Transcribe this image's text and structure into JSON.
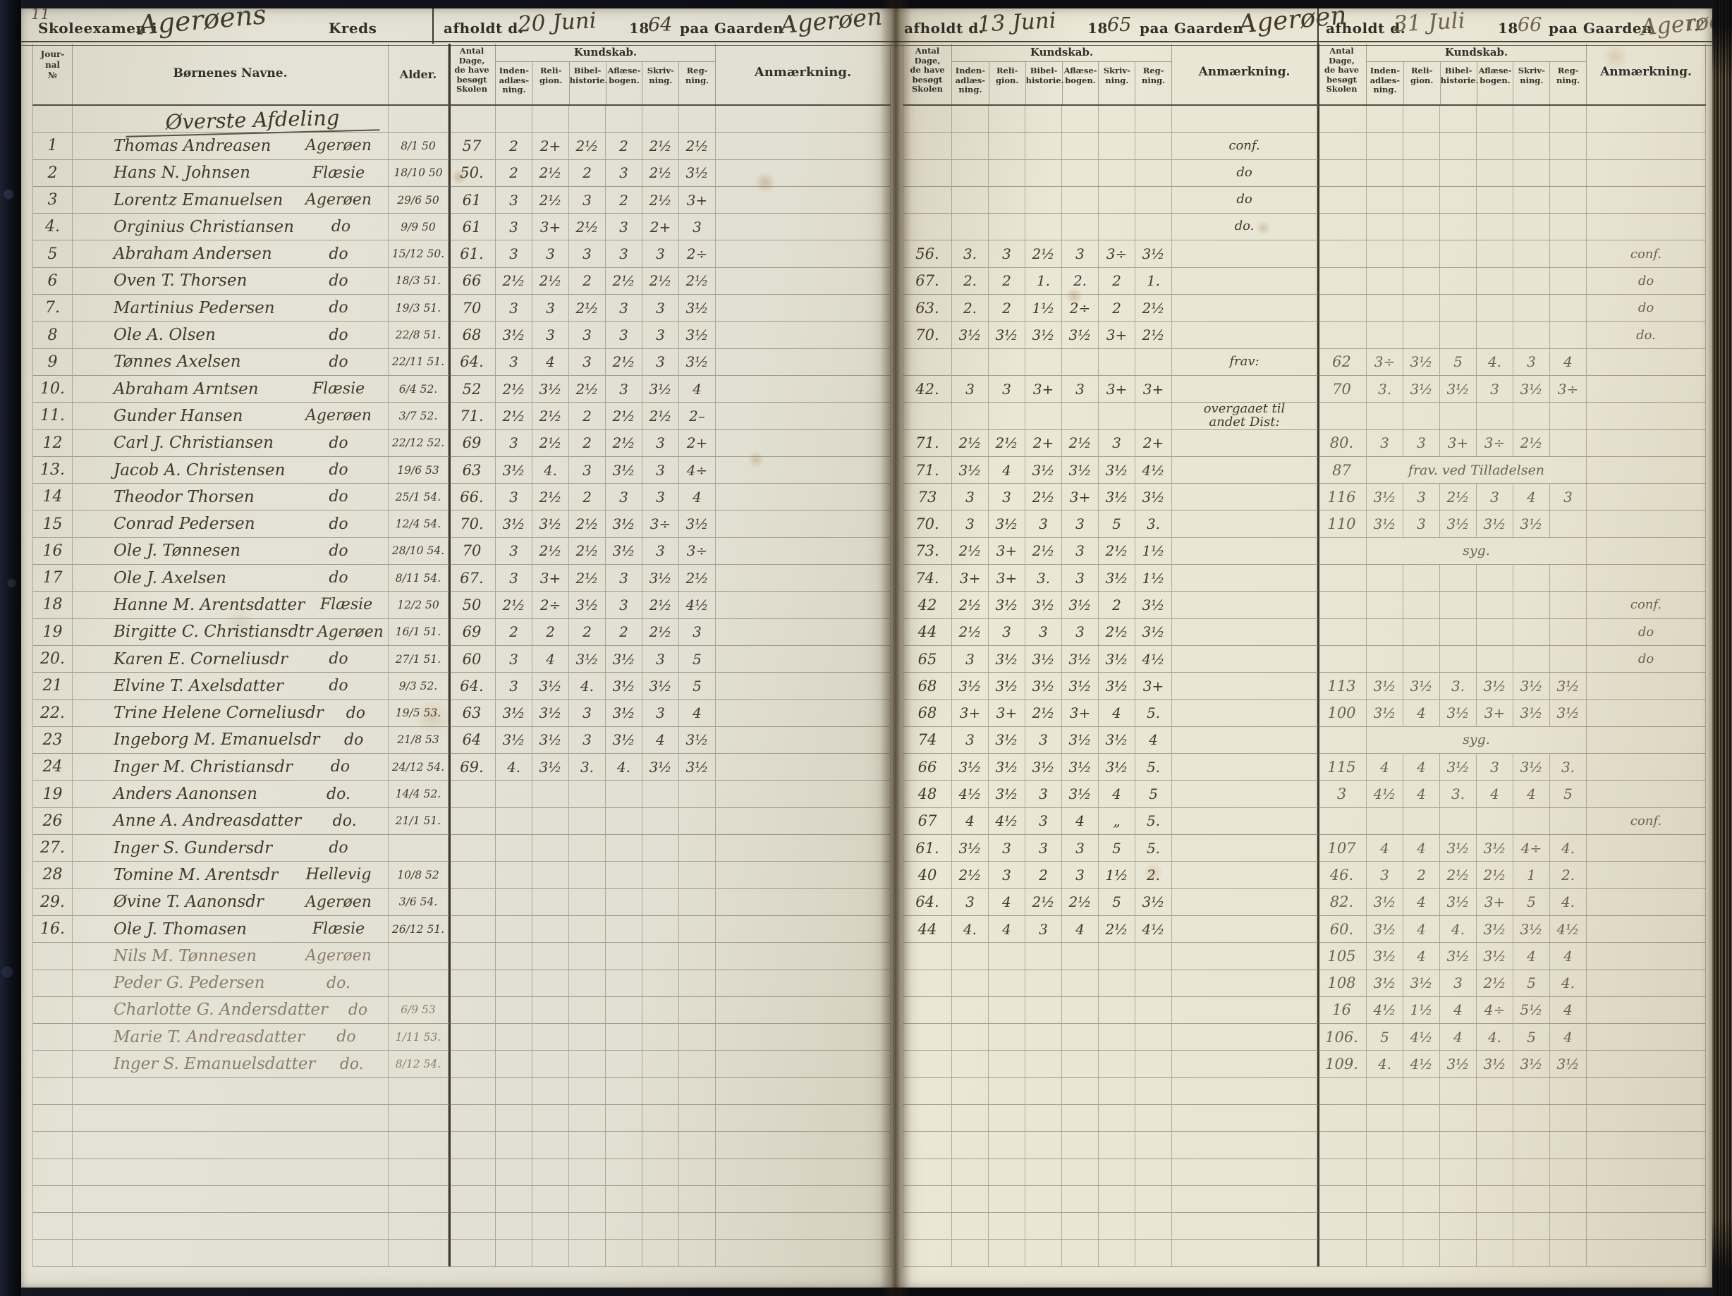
{
  "colors": {
    "paper": "#e8e4d5",
    "ink": "#43392b",
    "pencil": "#6e6250",
    "cover": "#0d0f16"
  },
  "document": {
    "type_label": "Skoleexamen i",
    "circuit_name": "Agerøens",
    "kreds_label": "Kreds",
    "held_label": "afholdt d.",
    "century": "18",
    "farm_label": "paa Gaarden",
    "page_number_left": "11",
    "page_number_right": "12",
    "section_title": "Øverste Afdeling",
    "exams": [
      {
        "date": "20 Juni",
        "year2": "64",
        "farm": "Agerøen"
      },
      {
        "date": "13 Juni",
        "year2": "65",
        "farm": "Agerøen"
      },
      {
        "date": "31 Juli",
        "year2": "66",
        "farm": "Agerøen"
      }
    ]
  },
  "columns": {
    "journal": "Jour-\nnal\n№",
    "names": "Børnenes Navne.",
    "age": "Alder.",
    "days": "Antal\nDage,\nde have\nbesøgt\nSkolen",
    "knowledge": "Kundskab.",
    "subjects": [
      "Inden-\nadlæs-\nning.",
      "Reli-\ngion.",
      "Bibel-\nhistorie.",
      "Aflæse-\nbogen.",
      "Skriv-\nning.",
      "Reg-\nning."
    ],
    "remark": "Anmærkning."
  },
  "rows": [
    {
      "no": "1",
      "name": "Thomas Andreasen",
      "res": "Agerøen",
      "born": "8/1 50",
      "d64": "57",
      "g64": [
        "2",
        "2+",
        "2½",
        "2",
        "2½",
        "2½"
      ],
      "a65": "conf."
    },
    {
      "no": "2",
      "name": "Hans N. Johnsen",
      "res": "Flæsie",
      "born": "18/10 50",
      "d64": "50.",
      "g64": [
        "2",
        "2½",
        "2",
        "3",
        "2½",
        "3½"
      ],
      "a65": "do"
    },
    {
      "no": "3",
      "name": "Lorentz Emanuelsen",
      "res": "Agerøen",
      "born": "29/6 50",
      "d64": "61",
      "g64": [
        "3",
        "2½",
        "3",
        "2",
        "2½",
        "3+"
      ],
      "a65": "do"
    },
    {
      "no": "4.",
      "name": "Orginius Christiansen",
      "res": "do",
      "born": "9/9 50",
      "d64": "61",
      "g64": [
        "3",
        "3+",
        "2½",
        "3",
        "2+",
        "3"
      ],
      "a65": "do."
    },
    {
      "no": "5",
      "name": "Abraham Andersen",
      "res": "do",
      "born": "15/12 50.",
      "d64": "61.",
      "g64": [
        "3",
        "3",
        "3",
        "3",
        "3",
        "2÷"
      ],
      "d65": "56.",
      "g65": [
        "3.",
        "3",
        "2½",
        "3",
        "3÷",
        "3½"
      ],
      "a66": "conf."
    },
    {
      "no": "6",
      "name": "Oven T. Thorsen",
      "res": "do",
      "born": "18/3 51.",
      "d64": "66",
      "g64": [
        "2½",
        "2½",
        "2",
        "2½",
        "2½",
        "2½"
      ],
      "d65": "67.",
      "g65": [
        "2.",
        "2",
        "1.",
        "2.",
        "2",
        "1."
      ],
      "a66": "do"
    },
    {
      "no": "7.",
      "name": "Martinius Pedersen",
      "res": "do",
      "born": "19/3 51.",
      "d64": "70",
      "g64": [
        "3",
        "3",
        "2½",
        "3",
        "3",
        "3½"
      ],
      "d65": "63.",
      "g65": [
        "2.",
        "2",
        "1½",
        "2÷",
        "2",
        "2½"
      ],
      "a66": "do"
    },
    {
      "no": "8",
      "name": "Ole A. Olsen",
      "res": "do",
      "born": "22/8 51.",
      "d64": "68",
      "g64": [
        "3½",
        "3",
        "3",
        "3",
        "3",
        "3½"
      ],
      "d65": "70.",
      "g65": [
        "3½",
        "3½",
        "3½",
        "3½",
        "3+",
        "2½"
      ],
      "a66": "do."
    },
    {
      "no": "9",
      "name": "Tønnes Axelsen",
      "res": "do",
      "born": "22/11 51.",
      "d64": "64.",
      "g64": [
        "3",
        "4",
        "3",
        "2½",
        "3",
        "3½"
      ],
      "a65": "frav:",
      "d66": "62",
      "g66": [
        "3÷",
        "3½",
        "5",
        "4.",
        "3",
        "4"
      ]
    },
    {
      "no": "10.",
      "name": "Abraham Arntsen",
      "res": "Flæsie",
      "born": "6/4 52.",
      "d64": "52",
      "g64": [
        "2½",
        "3½",
        "2½",
        "3",
        "3½",
        "4"
      ],
      "d65": "42.",
      "g65": [
        "3",
        "3",
        "3+",
        "3",
        "3+",
        "3+"
      ],
      "d66": "70",
      "g66": [
        "3.",
        "3½",
        "3½",
        "3",
        "3½",
        "3÷"
      ]
    },
    {
      "no": "11.",
      "name": "Gunder Hansen",
      "res": "Agerøen",
      "born": "3/7 52.",
      "d64": "71.",
      "g64": [
        "2½",
        "2½",
        "2",
        "2½",
        "2½",
        "2–"
      ],
      "a65": "overgaaet til\nandet Dist:"
    },
    {
      "no": "12",
      "name": "Carl J. Christiansen",
      "res": "do",
      "born": "22/12 52.",
      "d64": "69",
      "g64": [
        "3",
        "2½",
        "2",
        "2½",
        "3",
        "2+"
      ],
      "d65": "71.",
      "g65": [
        "2½",
        "2½",
        "2+",
        "2½",
        "3",
        "2+"
      ],
      "d66": "80.",
      "g66": [
        "3",
        "3",
        "3+",
        "3÷",
        "2½",
        ""
      ]
    },
    {
      "no": "13.",
      "name": "Jacob A. Christensen",
      "res": "do",
      "born": "19/6 53",
      "d64": "63",
      "g64": [
        "3½",
        "4.",
        "3",
        "3½",
        "3",
        "4÷"
      ],
      "d65": "71.",
      "g65": [
        "3½",
        "4",
        "3½",
        "3½",
        "3½",
        "4½"
      ],
      "d66": "87",
      "note66": "frav. ved Tilladelsen"
    },
    {
      "no": "14",
      "name": "Theodor Thorsen",
      "res": "do",
      "born": "25/1 54.",
      "d64": "66.",
      "g64": [
        "3",
        "2½",
        "2",
        "3",
        "3",
        "4"
      ],
      "d65": "73",
      "g65": [
        "3",
        "3",
        "2½",
        "3+",
        "3½",
        "3½"
      ],
      "d66": "116",
      "g66": [
        "3½",
        "3",
        "2½",
        "3",
        "4",
        "3"
      ]
    },
    {
      "no": "15",
      "name": "Conrad Pedersen",
      "res": "do",
      "born": "12/4 54.",
      "d64": "70.",
      "g64": [
        "3½",
        "3½",
        "2½",
        "3½",
        "3÷",
        "3½"
      ],
      "d65": "70.",
      "g65": [
        "3",
        "3½",
        "3",
        "3",
        "5",
        "3."
      ],
      "d66": "110",
      "g66": [
        "3½",
        "3",
        "3½",
        "3½",
        "3½",
        ""
      ]
    },
    {
      "no": "16",
      "name": "Ole J. Tønnesen",
      "res": "do",
      "born": "28/10 54.",
      "d64": "70",
      "g64": [
        "3",
        "2½",
        "2½",
        "3½",
        "3",
        "3÷"
      ],
      "d65": "73.",
      "g65": [
        "2½",
        "3+",
        "2½",
        "3",
        "2½",
        "1½"
      ],
      "note66": "syg."
    },
    {
      "no": "17",
      "name": "Ole J. Axelsen",
      "res": "do",
      "born": "8/11 54.",
      "d64": "67.",
      "g64": [
        "3",
        "3+",
        "2½",
        "3",
        "3½",
        "2½"
      ],
      "d65": "74.",
      "g65": [
        "3+",
        "3+",
        "3.",
        "3",
        "3½",
        "1½"
      ]
    },
    {
      "no": "18",
      "name": "Hanne M. Arentsdatter",
      "res": "Flæsie",
      "born": "12/2 50",
      "d64": "50",
      "g64": [
        "2½",
        "2÷",
        "3½",
        "3",
        "2½",
        "4½"
      ],
      "d65": "42",
      "g65": [
        "2½",
        "3½",
        "3½",
        "3½",
        "2",
        "3½"
      ],
      "a66": "conf."
    },
    {
      "no": "19",
      "name": "Birgitte C. Christiansdtr",
      "res": "Agerøen",
      "born": "16/1 51.",
      "d64": "69",
      "g64": [
        "2",
        "2",
        "2",
        "2",
        "2½",
        "3"
      ],
      "d65": "44",
      "g65": [
        "2½",
        "3",
        "3",
        "3",
        "2½",
        "3½"
      ],
      "a66": "do"
    },
    {
      "no": "20.",
      "name": "Karen E. Corneliusdr",
      "res": "do",
      "born": "27/1 51.",
      "d64": "60",
      "g64": [
        "3",
        "4",
        "3½",
        "3½",
        "3",
        "5"
      ],
      "d65": "65",
      "g65": [
        "3",
        "3½",
        "3½",
        "3½",
        "3½",
        "4½"
      ],
      "a66": "do"
    },
    {
      "no": "21",
      "name": "Elvine T. Axelsdatter",
      "res": "do",
      "born": "9/3 52.",
      "d64": "64.",
      "g64": [
        "3",
        "3½",
        "4.",
        "3½",
        "3½",
        "5"
      ],
      "d65": "68",
      "g65": [
        "3½",
        "3½",
        "3½",
        "3½",
        "3½",
        "3+"
      ],
      "d66": "113",
      "g66": [
        "3½",
        "3½",
        "3.",
        "3½",
        "3½",
        "3½"
      ]
    },
    {
      "no": "22.",
      "name": "Trine Helene Corneliusdr",
      "res": "do",
      "born": "19/5 53.",
      "d64": "63",
      "g64": [
        "3½",
        "3½",
        "3",
        "3½",
        "3",
        "4"
      ],
      "d65": "68",
      "g65": [
        "3+",
        "3+",
        "2½",
        "3+",
        "4",
        "5."
      ],
      "d66": "100",
      "g66": [
        "3½",
        "4",
        "3½",
        "3+",
        "3½",
        "3½"
      ]
    },
    {
      "no": "23",
      "name": "Ingeborg M. Emanuelsdr",
      "res": "do",
      "born": "21/8 53",
      "d64": "64",
      "g64": [
        "3½",
        "3½",
        "3",
        "3½",
        "4",
        "3½"
      ],
      "d65": "74",
      "g65": [
        "3",
        "3½",
        "3",
        "3½",
        "3½",
        "4"
      ],
      "note66": "syg."
    },
    {
      "no": "24",
      "name": "Inger M. Christiansdr",
      "res": "do",
      "born": "24/12 54.",
      "d64": "69.",
      "g64": [
        "4.",
        "3½",
        "3.",
        "4.",
        "3½",
        "3½"
      ],
      "d65": "66",
      "g65": [
        "3½",
        "3½",
        "3½",
        "3½",
        "3½",
        "5."
      ],
      "d66": "115",
      "g66": [
        "4",
        "4",
        "3½",
        "3",
        "3½",
        "3."
      ]
    },
    {
      "no": "19",
      "name": "Anders Aanonsen",
      "res": "do.",
      "born": "14/4 52.",
      "d65": "48",
      "g65": [
        "4½",
        "3½",
        "3",
        "3½",
        "4",
        "5"
      ],
      "d66": "3",
      "g66": [
        "4½",
        "4",
        "3.",
        "4",
        "4",
        "5"
      ]
    },
    {
      "no": "26",
      "name": "Anne A. Andreasdatter",
      "res": "do.",
      "born": "21/1 51.",
      "d65": "67",
      "g65": [
        "4",
        "4½",
        "3",
        "4",
        "„",
        "5."
      ],
      "a66": "conf."
    },
    {
      "no": "27.",
      "name": "Inger S. Gundersdr",
      "res": "do",
      "d65": "61.",
      "g65": [
        "3½",
        "3",
        "3",
        "3",
        "5",
        "5."
      ],
      "d66": "107",
      "g66": [
        "4",
        "4",
        "3½",
        "3½",
        "4÷",
        "4."
      ]
    },
    {
      "no": "28",
      "name": "Tomine M. Arentsdr",
      "res": "Hellevig",
      "born": "10/8 52",
      "d65": "40",
      "g65": [
        "2½",
        "3",
        "2",
        "3",
        "1½",
        "2."
      ],
      "d66": "46.",
      "g66": [
        "3",
        "2",
        "2½",
        "2½",
        "1",
        "2."
      ]
    },
    {
      "no": "29.",
      "name": "Øvine T. Aanonsdr",
      "res": "Agerøen",
      "born": "3/6 54.",
      "d65": "64.",
      "g65": [
        "3",
        "4",
        "2½",
        "2½",
        "5",
        "3½"
      ],
      "d66": "82.",
      "g66": [
        "3½",
        "4",
        "3½",
        "3+",
        "5",
        "4."
      ]
    },
    {
      "no": "16.",
      "name": "Ole J. Thomasen",
      "res": "Flæsie",
      "born": "26/12 51.",
      "d65": "44",
      "g65": [
        "4.",
        "4",
        "3",
        "4",
        "2½",
        "4½"
      ],
      "d66": "60.",
      "g66": [
        "3½",
        "4",
        "4.",
        "3½",
        "3½",
        "4½"
      ]
    },
    {
      "name": "Nils M. Tønnesen",
      "res": "Agerøen",
      "faint": 1,
      "d66": "105",
      "g66": [
        "3½",
        "4",
        "3½",
        "3½",
        "4",
        "4"
      ]
    },
    {
      "name": "Peder G. Pedersen",
      "res": "do.",
      "faint": 1,
      "d66": "108",
      "g66": [
        "3½",
        "3½",
        "3",
        "2½",
        "5",
        "4."
      ]
    },
    {
      "name": "Charlotte G. Andersdatter",
      "res": "do",
      "born": "6/9 53",
      "faint": 1,
      "d66": "16",
      "g66": [
        "4½",
        "1½",
        "4",
        "4÷",
        "5½",
        "4"
      ]
    },
    {
      "name": "Marie T. Andreasdatter",
      "res": "do",
      "born": "1/11 53.",
      "faint": 1,
      "d66": "106.",
      "g66": [
        "5",
        "4½",
        "4",
        "4.",
        "5",
        "4"
      ]
    },
    {
      "name": "Inger S. Emanuelsdatter",
      "res": "do.",
      "born": "8/12 54.",
      "faint": 1,
      "d66": "109.",
      "g66": [
        "4.",
        "4½",
        "3½",
        "3½",
        "3½",
        "3½"
      ]
    }
  ]
}
